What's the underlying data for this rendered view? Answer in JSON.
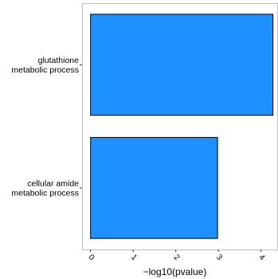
{
  "chart_data": {
    "type": "bar",
    "orientation": "horizontal",
    "categories": [
      [
        "glutathione",
        "metabolic process"
      ],
      [
        "cellular amide",
        "metabolic process"
      ]
    ],
    "values": [
      4.28,
      2.98
    ],
    "xlabel": "−log10(pvalue)",
    "ylabel": "",
    "title": "",
    "xlim": [
      -0.2,
      4.38
    ],
    "xticks": [
      "0",
      "1",
      "2",
      "3",
      "4"
    ],
    "grid": false,
    "bar_color": "#1e90ff",
    "bar_edge_color": "#000000",
    "panel_border_color": "#bfbfbf"
  }
}
